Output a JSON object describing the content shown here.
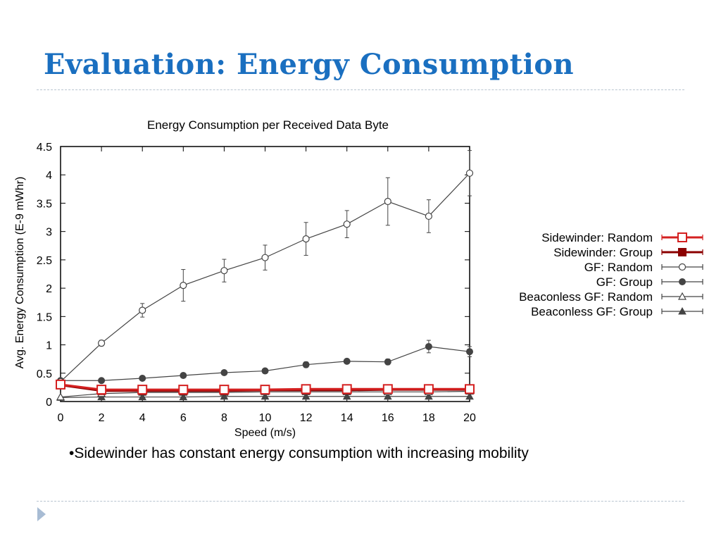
{
  "slide": {
    "title": "Evaluation: Energy Consumption",
    "bullet": "•Sidewinder has constant energy consumption with increasing mobility"
  },
  "colors": {
    "title": "#1a6fc0",
    "sidewinder_random": "#d42020",
    "sidewinder_group": "#8b0000",
    "gf": "#444444",
    "nav_arrow": "#a8bcd4"
  },
  "icons": {
    "nav": "triangle-right-icon"
  },
  "chart_data": {
    "type": "line",
    "title": "Energy Consumption per Received Data Byte",
    "xlabel": "Speed (m/s)",
    "ylabel": "Avg. Energy Consumption (E-9 mWhr)",
    "xlim": [
      0,
      20
    ],
    "ylim": [
      0,
      4.5
    ],
    "x_ticks": [
      "0",
      "2",
      "4",
      "6",
      "8",
      "10",
      "12",
      "14",
      "16",
      "18",
      "20"
    ],
    "y_ticks": [
      "0",
      "0.5",
      "1",
      "1.5",
      "2",
      "2.5",
      "3",
      "3.5",
      "4",
      "4.5"
    ],
    "x": [
      0,
      2,
      4,
      6,
      8,
      10,
      12,
      14,
      16,
      18,
      20
    ],
    "grid": false,
    "legend_position": "right",
    "series": [
      {
        "name": "Sidewinder: Random",
        "marker": "open-square",
        "color": "#d42020",
        "values": [
          0.3,
          0.21,
          0.21,
          0.21,
          0.21,
          0.21,
          0.22,
          0.22,
          0.22,
          0.22,
          0.22
        ]
      },
      {
        "name": "Sidewinder: Group",
        "marker": "filled-square",
        "color": "#8b0000",
        "values": [
          0.29,
          0.19,
          0.19,
          0.19,
          0.19,
          0.2,
          0.2,
          0.2,
          0.21,
          0.21,
          0.21
        ]
      },
      {
        "name": "GF: Random",
        "marker": "open-circle",
        "color": "#444444",
        "values": [
          0.35,
          1.03,
          1.61,
          2.05,
          2.31,
          2.54,
          2.87,
          3.13,
          3.53,
          3.27,
          4.03
        ],
        "errors": [
          0.02,
          0.05,
          0.12,
          0.28,
          0.2,
          0.22,
          0.29,
          0.24,
          0.42,
          0.29,
          0.4
        ]
      },
      {
        "name": "GF: Group",
        "marker": "filled-circle",
        "color": "#444444",
        "values": [
          0.37,
          0.37,
          0.41,
          0.46,
          0.51,
          0.54,
          0.65,
          0.71,
          0.7,
          0.97,
          0.88
        ],
        "errors": [
          0.01,
          0.01,
          0.02,
          0.02,
          0.02,
          0.02,
          0.05,
          0.04,
          0.05,
          0.11,
          0.09
        ]
      },
      {
        "name": "Beaconless GF: Random",
        "marker": "open-triangle",
        "color": "#444444",
        "values": [
          0.08,
          0.14,
          0.16,
          0.16,
          0.16,
          0.17,
          0.17,
          0.17,
          0.17,
          0.17,
          0.18
        ]
      },
      {
        "name": "Beaconless GF: Group",
        "marker": "filled-triangle",
        "color": "#444444",
        "values": [
          0.07,
          0.08,
          0.08,
          0.08,
          0.09,
          0.09,
          0.09,
          0.09,
          0.09,
          0.09,
          0.09
        ]
      }
    ]
  }
}
